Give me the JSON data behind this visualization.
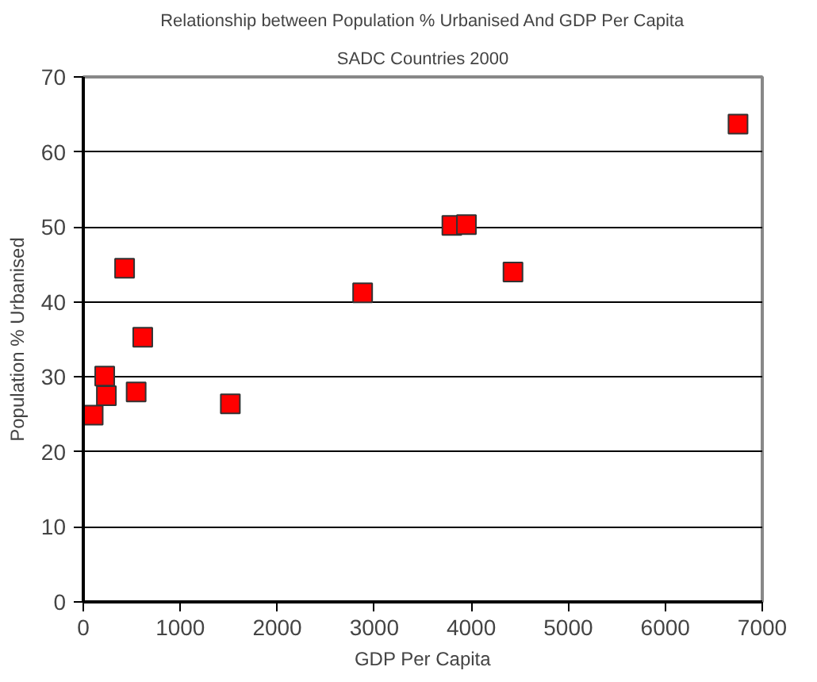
{
  "chart_data": {
    "type": "scatter",
    "title": "Relationship between Population % Urbanised And GDP Per Capita",
    "subtitle": "SADC Countries 2000",
    "xlabel": "GDP Per Capita",
    "ylabel": "Population % Urbanised",
    "x": [
      102,
      238,
      221,
      426,
      545,
      613,
      1516,
      2880,
      3800,
      3950,
      4430,
      6750
    ],
    "series": [
      {
        "color": "#ff0000",
        "values": [
          24.9,
          27.5,
          30.1,
          44.5,
          28.0,
          35.3,
          26.4,
          41.2,
          50.2,
          50.3,
          44.0,
          63.7
        ]
      }
    ],
    "xlim": [
      0,
      7000
    ],
    "xticks": [
      0,
      1000,
      2000,
      3000,
      4000,
      5000,
      6000,
      7000
    ],
    "ylim": [
      0,
      70
    ],
    "yticks": [
      0,
      10,
      20,
      30,
      40,
      50,
      60,
      70
    ],
    "grid": "y",
    "marker": "square"
  }
}
